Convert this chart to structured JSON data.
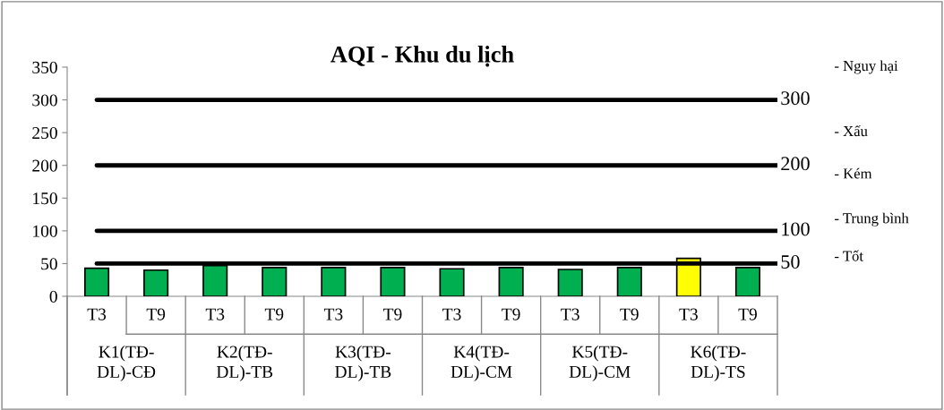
{
  "chart_data": {
    "type": "bar",
    "title": "AQI - Khu du lịch",
    "categories": [
      "T3",
      "T9",
      "T3",
      "T9",
      "T3",
      "T9",
      "T3",
      "T9",
      "T3",
      "T9",
      "T3",
      "T9"
    ],
    "values": [
      43,
      40,
      47,
      44,
      44,
      44,
      42,
      44,
      41,
      44,
      58,
      44
    ],
    "colors": [
      "#00b050",
      "#00b050",
      "#00b050",
      "#00b050",
      "#00b050",
      "#00b050",
      "#00b050",
      "#00b050",
      "#00b050",
      "#00b050",
      "#ffff00",
      "#00b050"
    ],
    "ylim": [
      0,
      350
    ],
    "yticks": [
      0,
      50,
      100,
      150,
      200,
      250,
      300,
      350
    ],
    "ref_lines": [
      {
        "axis": "y",
        "value": 50,
        "label": "50",
        "color": "#000000"
      },
      {
        "axis": "y",
        "value": 100,
        "label": "100",
        "color": "#000000"
      },
      {
        "axis": "y",
        "value": 200,
        "label": "200",
        "color": "#000000"
      },
      {
        "axis": "y",
        "value": 300,
        "label": "300",
        "color": "#000000"
      }
    ],
    "annotations": [
      "K1(TĐ-\nDL)-CĐ",
      "K2(TĐ-\nDL)-TB",
      "K3(TĐ-\nDL)-TB",
      "K4(TĐ-\nDL)-CM",
      "K5(TĐ-\nDL)-CM",
      "K6(TĐ-\nDL)-TS",
      "- Nguy hại",
      "- Xấu",
      "- Kém",
      "- Trung bình",
      "- Tốt"
    ],
    "grid": false
  }
}
